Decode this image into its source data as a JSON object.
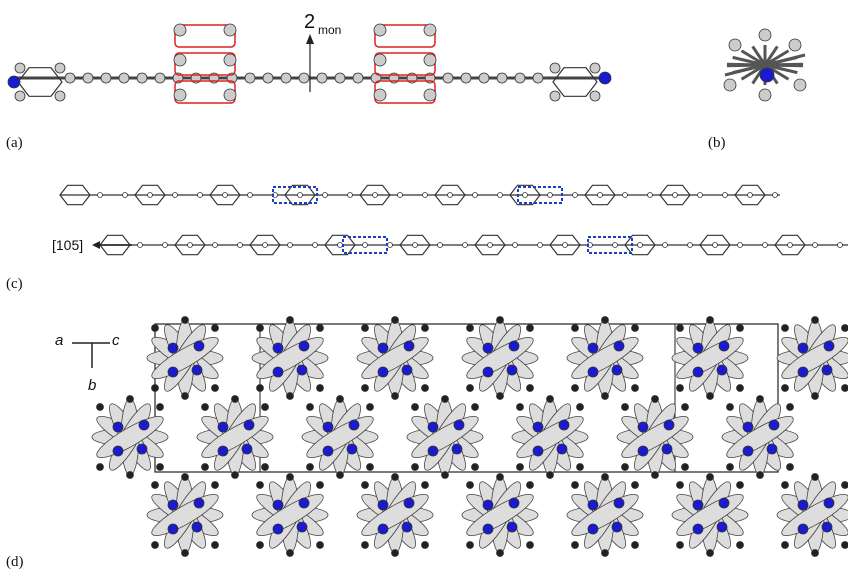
{
  "panels": [
    {
      "label": "(a)",
      "axis_label": "2",
      "axis_subscript": "mon"
    },
    {
      "label": "(b)"
    },
    {
      "label": "(c)",
      "direction": "[105]"
    },
    {
      "label": "(d)",
      "axes": [
        "a",
        "c",
        "b"
      ]
    }
  ]
}
